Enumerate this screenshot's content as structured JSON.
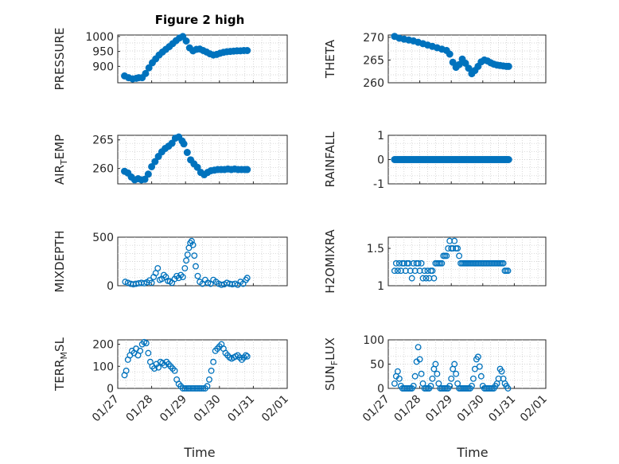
{
  "figure": {
    "title": "Figure 2 high",
    "marker_color": "#0072BD",
    "date_ticks": [
      "01/27",
      "01/28",
      "01/29",
      "01/30",
      "01/31",
      "02/01"
    ],
    "xlabel": "Time"
  },
  "chart_data": [
    {
      "type": "scatter",
      "id": "pressure",
      "ylabel": "PRESSURE",
      "yticks": [
        900,
        950,
        1000
      ],
      "ylim": [
        845,
        1005
      ],
      "xlim": [
        0,
        5
      ],
      "marker": "filled-circle",
      "x": [
        0.2,
        0.32,
        0.44,
        0.55,
        0.62,
        0.72,
        0.82,
        0.92,
        1.02,
        1.12,
        1.22,
        1.32,
        1.42,
        1.52,
        1.62,
        1.72,
        1.82,
        1.92,
        2.02,
        2.12,
        2.22,
        2.32,
        2.42,
        2.52,
        2.62,
        2.72,
        2.82,
        2.92,
        3.02,
        3.12,
        3.22,
        3.32,
        3.42,
        3.52,
        3.62,
        3.72,
        3.82
      ],
      "y": [
        868,
        862,
        858,
        860,
        862,
        862,
        876,
        895,
        912,
        925,
        938,
        948,
        957,
        966,
        976,
        986,
        995,
        1000,
        985,
        962,
        952,
        957,
        958,
        953,
        948,
        942,
        938,
        940,
        944,
        947,
        949,
        950,
        951,
        952,
        952,
        953,
        953
      ],
      "note": "values estimated from gridlines"
    },
    {
      "type": "scatter",
      "id": "theta",
      "ylabel": "THETA",
      "yticks": [
        260,
        265,
        270
      ],
      "ylim": [
        260,
        270.5
      ],
      "xlim": [
        0,
        5
      ],
      "marker": "filled-circle",
      "x": [
        0.2,
        0.35,
        0.5,
        0.65,
        0.8,
        0.95,
        1.1,
        1.25,
        1.4,
        1.55,
        1.7,
        1.85,
        1.95,
        2.05,
        2.15,
        2.25,
        2.35,
        2.45,
        2.55,
        2.65,
        2.75,
        2.85,
        2.95,
        3.05,
        3.15,
        3.25,
        3.35,
        3.45,
        3.55,
        3.65,
        3.75,
        3.82
      ],
      "y": [
        270.2,
        269.8,
        269.6,
        269.4,
        269.2,
        268.9,
        268.6,
        268.3,
        268,
        267.7,
        267.4,
        267.1,
        266.3,
        264.5,
        263.4,
        264,
        265.2,
        264.3,
        263.2,
        262,
        262.7,
        263.6,
        264.6,
        265,
        264.8,
        264.4,
        264.1,
        263.9,
        263.8,
        263.7,
        263.6,
        263.6
      ],
      "note": "values estimated from gridlines"
    },
    {
      "type": "scatter",
      "id": "air-temp",
      "ylabel": "AIR_TEMP",
      "yticks": [
        260,
        265
      ],
      "ylim": [
        257.3,
        265.8
      ],
      "xlim": [
        0,
        5
      ],
      "marker": "filled-circle",
      "x": [
        0.2,
        0.3,
        0.4,
        0.5,
        0.6,
        0.7,
        0.8,
        0.9,
        1.0,
        1.1,
        1.2,
        1.3,
        1.4,
        1.5,
        1.6,
        1.7,
        1.8,
        1.9,
        1.95,
        2.05,
        2.15,
        2.25,
        2.35,
        2.45,
        2.55,
        2.65,
        2.75,
        2.85,
        2.95,
        3.05,
        3.15,
        3.25,
        3.35,
        3.45,
        3.55,
        3.65,
        3.75,
        3.82
      ],
      "y": [
        259.5,
        259.2,
        258.5,
        258,
        258.2,
        258,
        258.1,
        259,
        260.3,
        261.2,
        262.1,
        262.9,
        263.5,
        263.9,
        264.4,
        265.3,
        265.5,
        264.8,
        264.3,
        262.8,
        261.5,
        260.8,
        260.2,
        259.3,
        258.9,
        259.3,
        259.6,
        259.7,
        259.8,
        259.8,
        259.8,
        259.9,
        259.8,
        259.9,
        259.8,
        259.8,
        259.8,
        259.8
      ],
      "note": "values estimated from gridlines"
    },
    {
      "type": "scatter",
      "id": "rainfall",
      "ylabel": "RAINFALL",
      "yticks": [
        -1,
        0,
        1
      ],
      "ylim": [
        -1,
        1
      ],
      "xlim": [
        0,
        5
      ],
      "marker": "filled-circle",
      "x_range": [
        0.2,
        3.82
      ],
      "constant_y": 0,
      "n_points": 80
    },
    {
      "type": "scatter",
      "id": "mixdepth",
      "ylabel": "MIXDEPTH",
      "yticks": [
        0,
        500
      ],
      "ylim": [
        0,
        500
      ],
      "xlim": [
        0,
        5
      ],
      "marker": "open-circle",
      "x": [
        0.22,
        0.3,
        0.38,
        0.46,
        0.54,
        0.62,
        0.7,
        0.78,
        0.86,
        0.94,
        1.0,
        1.06,
        1.12,
        1.18,
        1.24,
        1.3,
        1.36,
        1.42,
        1.48,
        1.54,
        1.6,
        1.68,
        1.74,
        1.8,
        1.86,
        1.92,
        1.98,
        2.02,
        2.06,
        2.1,
        2.14,
        2.18,
        2.22,
        2.26,
        2.3,
        2.36,
        2.42,
        2.5,
        2.58,
        2.66,
        2.74,
        2.82,
        2.9,
        2.98,
        3.06,
        3.14,
        3.22,
        3.3,
        3.38,
        3.46,
        3.54,
        3.62,
        3.7,
        3.78,
        3.82
      ],
      "y": [
        40,
        30,
        20,
        15,
        20,
        25,
        30,
        25,
        35,
        55,
        30,
        90,
        130,
        180,
        60,
        70,
        110,
        90,
        50,
        45,
        30,
        70,
        100,
        80,
        110,
        90,
        180,
        260,
        320,
        390,
        440,
        460,
        420,
        310,
        200,
        100,
        40,
        20,
        60,
        30,
        20,
        60,
        40,
        20,
        10,
        15,
        30,
        20,
        15,
        20,
        10,
        40,
        20,
        60,
        80
      ],
      "note": "values estimated from gridlines"
    },
    {
      "type": "scatter",
      "id": "h2omixra",
      "ylabel": "H2OMIXRA",
      "yticks": [
        1,
        1.5
      ],
      "ylim": [
        1,
        1.65
      ],
      "xlim": [
        0,
        5
      ],
      "marker": "open-circle",
      "x": [
        0.2,
        0.25,
        0.3,
        0.35,
        0.4,
        0.45,
        0.5,
        0.55,
        0.6,
        0.65,
        0.7,
        0.75,
        0.8,
        0.85,
        0.9,
        0.95,
        1.0,
        1.05,
        1.1,
        1.15,
        1.2,
        1.25,
        1.3,
        1.35,
        1.4,
        1.45,
        1.5,
        1.55,
        1.6,
        1.65,
        1.7,
        1.75,
        1.8,
        1.85,
        1.9,
        1.95,
        2.0,
        2.05,
        2.1,
        2.15,
        2.2,
        2.25,
        2.3,
        2.35,
        2.4,
        2.45,
        2.5,
        2.55,
        2.6,
        2.65,
        2.7,
        2.75,
        2.8,
        2.85,
        2.9,
        2.95,
        3.0,
        3.05,
        3.1,
        3.15,
        3.2,
        3.25,
        3.3,
        3.35,
        3.4,
        3.45,
        3.5,
        3.55,
        3.6,
        3.65,
        3.7,
        3.75,
        3.8
      ],
      "y": [
        1.2,
        1.3,
        1.2,
        1.3,
        1.2,
        1.3,
        1.3,
        1.2,
        1.3,
        1.3,
        1.2,
        1.1,
        1.3,
        1.2,
        1.3,
        1.3,
        1.2,
        1.3,
        1.1,
        1.2,
        1.1,
        1.2,
        1.1,
        1.2,
        1.2,
        1.1,
        1.3,
        1.3,
        1.3,
        1.3,
        1.3,
        1.4,
        1.4,
        1.4,
        1.5,
        1.6,
        1.5,
        1.5,
        1.6,
        1.5,
        1.5,
        1.4,
        1.3,
        1.3,
        1.3,
        1.3,
        1.3,
        1.3,
        1.3,
        1.3,
        1.3,
        1.3,
        1.3,
        1.3,
        1.3,
        1.3,
        1.3,
        1.3,
        1.3,
        1.3,
        1.3,
        1.3,
        1.3,
        1.3,
        1.3,
        1.3,
        1.3,
        1.3,
        1.3,
        1.3,
        1.2,
        1.2,
        1.2
      ],
      "note": "values estimated from gridlines"
    },
    {
      "type": "scatter",
      "id": "terr-msl",
      "ylabel": "TERR_MSL",
      "yticks": [
        0,
        100,
        200
      ],
      "ylim": [
        0,
        220
      ],
      "xlim": [
        0,
        5
      ],
      "marker": "open-circle",
      "x": [
        0.2,
        0.25,
        0.3,
        0.36,
        0.42,
        0.48,
        0.54,
        0.6,
        0.66,
        0.72,
        0.78,
        0.84,
        0.9,
        0.96,
        1.02,
        1.08,
        1.14,
        1.2,
        1.26,
        1.32,
        1.38,
        1.44,
        1.5,
        1.56,
        1.62,
        1.68,
        1.74,
        1.8,
        1.86,
        1.92,
        1.98,
        2.04,
        2.1,
        2.16,
        2.22,
        2.28,
        2.34,
        2.4,
        2.46,
        2.52,
        2.58,
        2.64,
        2.7,
        2.76,
        2.82,
        2.88,
        2.94,
        3.0,
        3.06,
        3.12,
        3.18,
        3.24,
        3.3,
        3.36,
        3.42,
        3.48,
        3.54,
        3.6,
        3.66,
        3.72,
        3.78,
        3.82
      ],
      "y": [
        60,
        80,
        130,
        150,
        170,
        160,
        180,
        150,
        170,
        200,
        210,
        205,
        160,
        120,
        100,
        90,
        110,
        95,
        120,
        115,
        105,
        120,
        110,
        100,
        90,
        80,
        40,
        20,
        10,
        0,
        0,
        0,
        0,
        0,
        0,
        0,
        0,
        0,
        0,
        0,
        0,
        10,
        40,
        80,
        120,
        170,
        180,
        190,
        200,
        180,
        160,
        150,
        140,
        135,
        140,
        145,
        150,
        140,
        130,
        140,
        150,
        145
      ],
      "note": "values estimated from gridlines"
    },
    {
      "type": "scatter",
      "id": "sun-flux",
      "ylabel": "SUN_FLUX",
      "yticks": [
        0,
        50,
        100
      ],
      "ylim": [
        0,
        100
      ],
      "xlim": [
        0,
        5
      ],
      "marker": "open-circle",
      "x": [
        0.2,
        0.25,
        0.3,
        0.35,
        0.4,
        0.45,
        0.5,
        0.55,
        0.6,
        0.65,
        0.7,
        0.75,
        0.8,
        0.85,
        0.9,
        0.95,
        1.0,
        1.05,
        1.1,
        1.15,
        1.2,
        1.25,
        1.3,
        1.35,
        1.4,
        1.45,
        1.5,
        1.55,
        1.6,
        1.65,
        1.7,
        1.75,
        1.8,
        1.85,
        1.9,
        1.95,
        2.0,
        2.05,
        2.1,
        2.15,
        2.2,
        2.25,
        2.3,
        2.35,
        2.4,
        2.45,
        2.5,
        2.55,
        2.6,
        2.65,
        2.7,
        2.75,
        2.8,
        2.85,
        2.9,
        2.95,
        3.0,
        3.05,
        3.1,
        3.15,
        3.2,
        3.25,
        3.3,
        3.35,
        3.4,
        3.45,
        3.5,
        3.55,
        3.6,
        3.65,
        3.7,
        3.75,
        3.8
      ],
      "y": [
        10,
        25,
        35,
        20,
        5,
        0,
        0,
        0,
        0,
        0,
        0,
        0,
        5,
        25,
        55,
        85,
        60,
        30,
        10,
        0,
        0,
        0,
        0,
        5,
        20,
        40,
        50,
        30,
        10,
        0,
        0,
        0,
        0,
        0,
        0,
        5,
        20,
        40,
        50,
        30,
        10,
        0,
        0,
        0,
        0,
        0,
        0,
        0,
        0,
        5,
        20,
        40,
        60,
        65,
        45,
        25,
        5,
        0,
        0,
        0,
        0,
        0,
        0,
        0,
        5,
        10,
        20,
        40,
        35,
        20,
        10,
        5,
        0
      ],
      "note": "values estimated from gridlines"
    }
  ]
}
